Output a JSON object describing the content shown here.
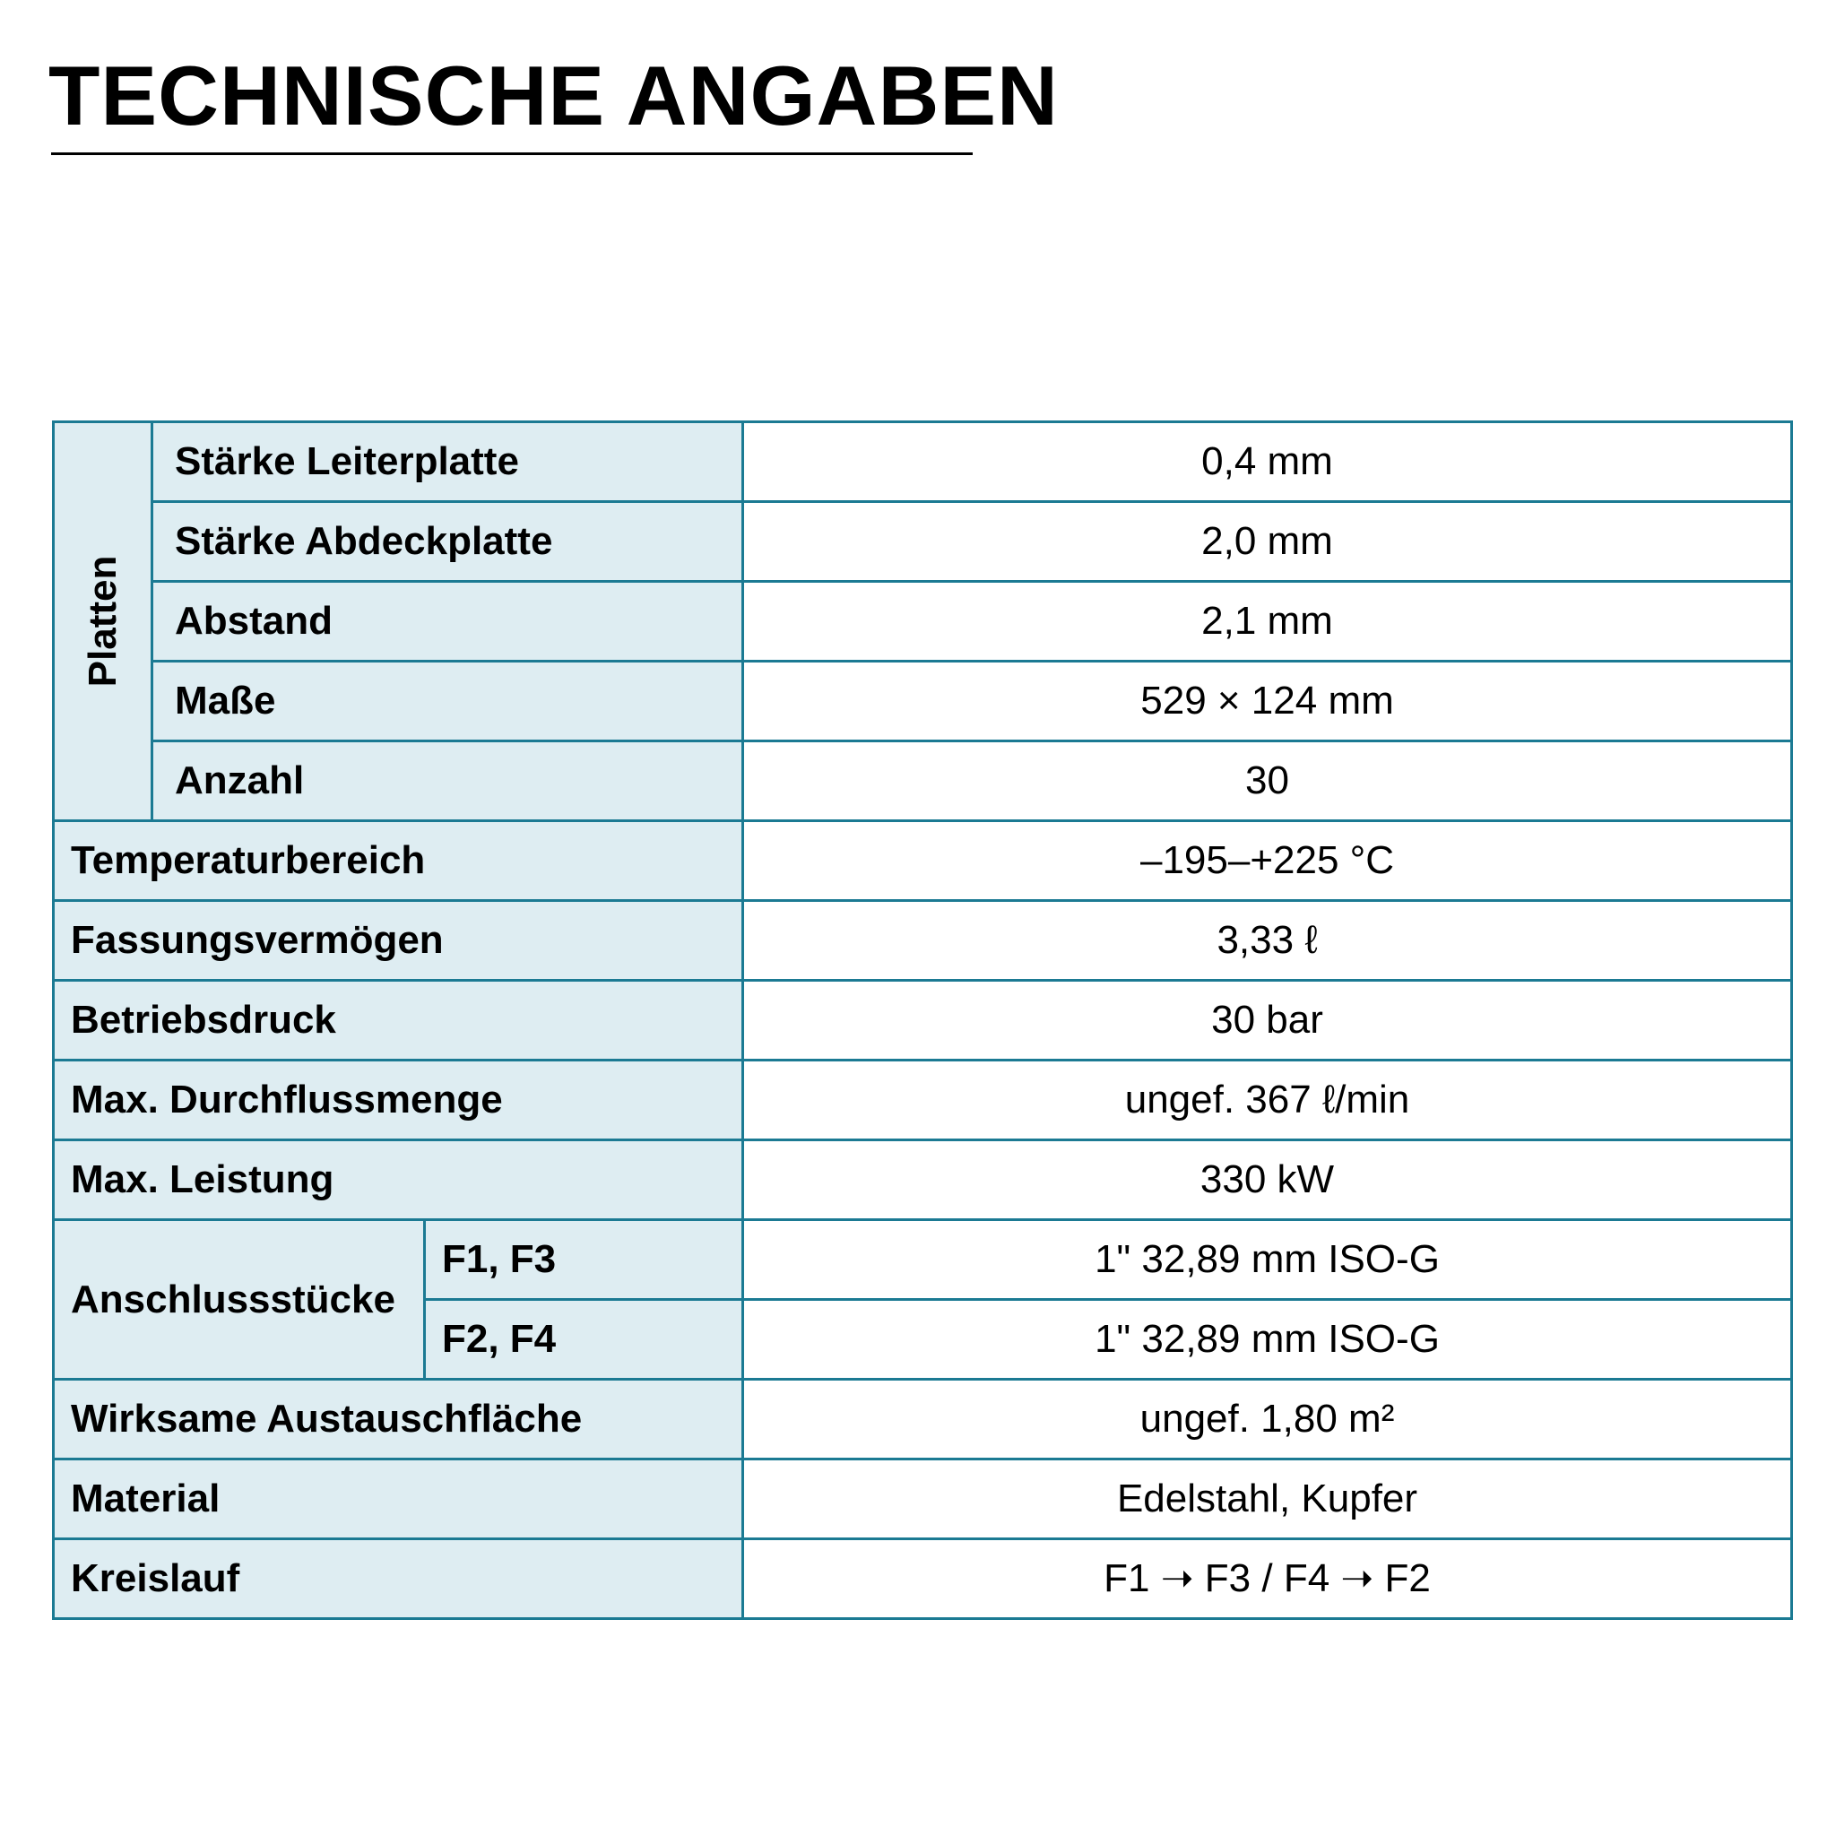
{
  "title": "TECHNISCHE ANGABEN",
  "colors": {
    "border": "#1b7a93",
    "label_bg": "#deedf2"
  },
  "table": {
    "platten": {
      "group_label": "Platten",
      "rows": [
        {
          "label": "Stärke Leiterplatte",
          "value": "0,4 mm"
        },
        {
          "label": "Stärke Abdeckplatte",
          "value": "2,0 mm"
        },
        {
          "label": "Abstand",
          "value": "2,1 mm"
        },
        {
          "label": "Maße",
          "value": "529 × 124 mm"
        },
        {
          "label": "Anzahl",
          "value": "30"
        }
      ]
    },
    "rows_a": [
      {
        "label": "Temperaturbereich",
        "value": "–195–+225 °C"
      },
      {
        "label": "Fassungsvermögen",
        "value": "3,33 ℓ"
      },
      {
        "label": "Betriebsdruck",
        "value": "30 bar"
      },
      {
        "label": "Max. Durchflussmenge",
        "value": "ungef. 367 ℓ/min"
      },
      {
        "label": "Max. Leistung",
        "value": "330 kW"
      }
    ],
    "anschluss": {
      "group_label": "Anschlussstücke",
      "rows": [
        {
          "label": "F1, F3",
          "value": "1\" 32,89 mm ISO-G"
        },
        {
          "label": "F2, F4",
          "value": "1\" 32,89 mm ISO-G"
        }
      ]
    },
    "rows_b": [
      {
        "label": "Wirksame Austauschfläche",
        "value": "ungef. 1,80 m²"
      },
      {
        "label": "Material",
        "value": "Edelstahl, Kupfer"
      },
      {
        "label": "Kreislauf",
        "value": "F1 ➝ F3 / F4 ➝ F2"
      }
    ]
  }
}
